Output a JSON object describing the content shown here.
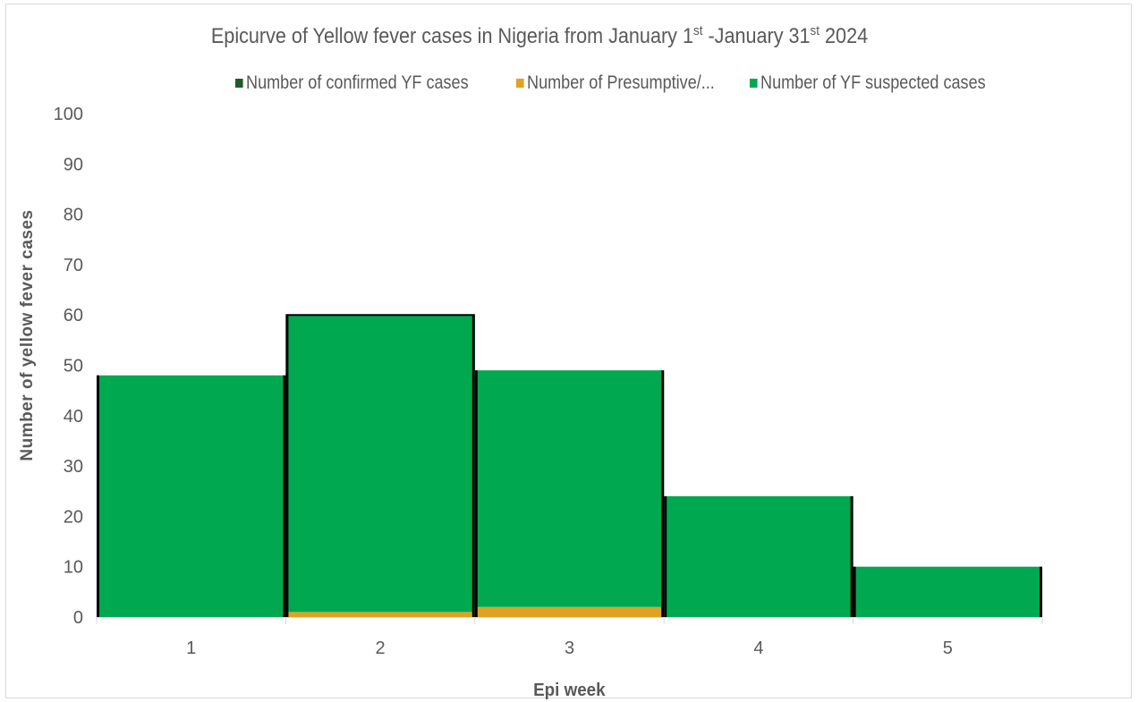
{
  "chart_data": {
    "type": "bar",
    "stacked": true,
    "title_parts": [
      {
        "text": "Epicurve of Yellow fever cases in Nigeria from January 1",
        "sup": false
      },
      {
        "text": "st",
        "sup": true
      },
      {
        "text": " -January 31",
        "sup": false
      },
      {
        "text": "st",
        "sup": true
      },
      {
        "text": " 2024",
        "sup": false
      }
    ],
    "xlabel": "Epi week",
    "ylabel": "Number of yellow  fever cases",
    "categories": [
      "1",
      "2",
      "3",
      "4",
      "5"
    ],
    "ylim": [
      0,
      100
    ],
    "yticks": [
      0,
      10,
      20,
      30,
      40,
      50,
      60,
      70,
      80,
      90,
      100
    ],
    "grid": false,
    "legend_position": "top",
    "series": [
      {
        "name": "Number of confirmed YF cases",
        "color": "#1e5c2a",
        "values": [
          0,
          0,
          0,
          0,
          0
        ]
      },
      {
        "name": "Number of Presumptive/...",
        "color": "#e0a222",
        "values": [
          0,
          1,
          2,
          0,
          0
        ]
      },
      {
        "name": "Number of YF suspected cases",
        "color": "#00a84f",
        "values": [
          48,
          59,
          47,
          24,
          10
        ]
      }
    ]
  }
}
